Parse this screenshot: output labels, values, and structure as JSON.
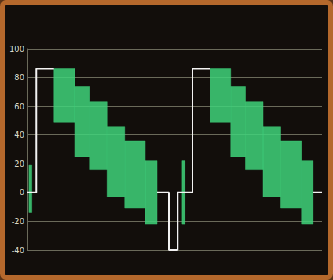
{
  "chart_data": {
    "type": "waveform",
    "xlim": [
      0,
      100
    ],
    "ylim": [
      -40,
      100
    ],
    "yticks": [
      -40,
      -20,
      0,
      20,
      40,
      60,
      80,
      100
    ],
    "grid": true,
    "tick_labels": "y",
    "series": [
      {
        "type": "band",
        "color": "#3fd27a",
        "x0": [
          0.5,
          9,
          16,
          21,
          27,
          33,
          40,
          52.5,
          62,
          69,
          74,
          80,
          86,
          93
        ],
        "x1": [
          1.5,
          16,
          21,
          27,
          33,
          40,
          44,
          53.5,
          69,
          74,
          80,
          86,
          93,
          97
        ],
        "low": [
          -14,
          49,
          25,
          16,
          -3,
          -11,
          -22,
          -22,
          49,
          25,
          16,
          -3,
          -11,
          -22
        ],
        "high": [
          19,
          86,
          74,
          63,
          46,
          36,
          22,
          22,
          86,
          74,
          63,
          46,
          36,
          22
        ]
      },
      {
        "type": "line",
        "color": "#f2f2f2",
        "x": [
          0,
          3,
          3,
          9,
          20,
          44,
          48,
          48,
          51,
          51,
          56,
          56,
          62,
          80,
          97,
          100
        ],
        "values": [
          0,
          0,
          86,
          86,
          null,
          0,
          0,
          -40,
          -40,
          0,
          0,
          86,
          86,
          null,
          0,
          0
        ]
      }
    ]
  }
}
